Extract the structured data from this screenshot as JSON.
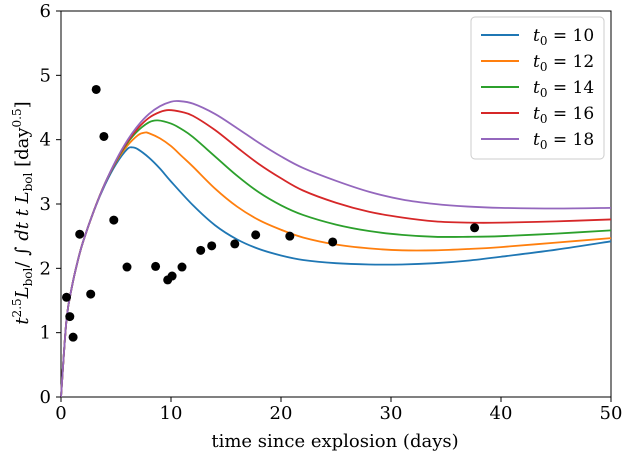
{
  "chart_data": {
    "type": "line",
    "xlabel": "time since explosion (days)",
    "ylabel": "t^2.5 L_bol / ∫ dt t L_bol [day^0.5]",
    "xlim": [
      0,
      50
    ],
    "ylim": [
      0,
      6
    ],
    "x_ticks": [
      0,
      10,
      20,
      30,
      40,
      50
    ],
    "y_ticks": [
      0,
      1,
      2,
      3,
      4,
      5,
      6
    ],
    "grid": false,
    "legend": "top-right",
    "series": [
      {
        "name": "t0 = 10",
        "label_lhs": "t0",
        "label_rhs": "= 10",
        "color": "#1f77b4",
        "x": [
          0,
          0.5,
          1,
          1.5,
          2,
          3,
          4,
          5,
          6,
          6.5,
          7,
          8,
          9,
          10,
          12,
          14,
          16,
          18,
          20,
          22,
          25,
          28,
          31,
          34,
          37,
          40,
          45,
          50
        ],
        "y": [
          0,
          1.2,
          1.72,
          2.1,
          2.41,
          2.9,
          3.3,
          3.62,
          3.85,
          3.88,
          3.85,
          3.72,
          3.55,
          3.35,
          2.98,
          2.67,
          2.45,
          2.3,
          2.2,
          2.13,
          2.08,
          2.06,
          2.06,
          2.08,
          2.12,
          2.18,
          2.29,
          2.42
        ]
      },
      {
        "name": "t0 = 12",
        "label_lhs": "t0",
        "label_rhs": "= 12",
        "color": "#ff7f0e",
        "x": [
          0,
          0.5,
          1,
          1.5,
          2,
          3,
          4,
          5,
          6,
          7,
          7.6,
          8,
          9,
          10,
          11,
          12,
          14,
          16,
          18,
          20,
          22,
          25,
          28,
          31,
          34,
          37,
          40,
          45,
          50
        ],
        "y": [
          0,
          1.2,
          1.72,
          2.1,
          2.41,
          2.9,
          3.32,
          3.65,
          3.9,
          4.07,
          4.11,
          4.1,
          4.02,
          3.9,
          3.74,
          3.58,
          3.24,
          2.96,
          2.75,
          2.6,
          2.48,
          2.37,
          2.31,
          2.28,
          2.28,
          2.3,
          2.33,
          2.4,
          2.47
        ]
      },
      {
        "name": "t0 = 14",
        "label_lhs": "t0",
        "label_rhs": "= 14",
        "color": "#2ca02c",
        "x": [
          0,
          0.5,
          1,
          1.5,
          2,
          3,
          4,
          5,
          6,
          7,
          8,
          8.8,
          10,
          11,
          12,
          14,
          16,
          18,
          20,
          22,
          25,
          28,
          31,
          34,
          37,
          40,
          45,
          50
        ],
        "y": [
          0,
          1.2,
          1.72,
          2.1,
          2.41,
          2.9,
          3.32,
          3.66,
          3.94,
          4.14,
          4.27,
          4.3,
          4.25,
          4.16,
          4.04,
          3.74,
          3.44,
          3.18,
          2.98,
          2.83,
          2.68,
          2.58,
          2.52,
          2.49,
          2.49,
          2.5,
          2.54,
          2.59
        ]
      },
      {
        "name": "t0 = 16",
        "label_lhs": "t0",
        "label_rhs": "= 16",
        "color": "#d62728",
        "x": [
          0,
          0.5,
          1,
          1.5,
          2,
          3,
          4,
          5,
          6,
          7,
          8,
          9,
          9.8,
          11,
          12,
          14,
          16,
          18,
          20,
          22,
          25,
          28,
          31,
          34,
          37,
          40,
          45,
          50
        ],
        "y": [
          0,
          1.2,
          1.72,
          2.1,
          2.41,
          2.9,
          3.32,
          3.67,
          3.96,
          4.18,
          4.34,
          4.43,
          4.46,
          4.43,
          4.37,
          4.15,
          3.88,
          3.62,
          3.4,
          3.21,
          3.02,
          2.88,
          2.79,
          2.73,
          2.71,
          2.71,
          2.73,
          2.76
        ]
      },
      {
        "name": "t0 = 18",
        "label_lhs": "t0",
        "label_rhs": "= 18",
        "color": "#9467bd",
        "x": [
          0,
          0.5,
          1,
          1.5,
          2,
          3,
          4,
          5,
          6,
          7,
          8,
          9,
          10,
          10.7,
          12,
          14,
          16,
          18,
          20,
          22,
          25,
          28,
          31,
          34,
          37,
          40,
          45,
          50
        ],
        "y": [
          0,
          1.2,
          1.72,
          2.1,
          2.41,
          2.9,
          3.32,
          3.68,
          3.98,
          4.22,
          4.4,
          4.52,
          4.59,
          4.6,
          4.56,
          4.4,
          4.18,
          3.95,
          3.74,
          3.56,
          3.36,
          3.19,
          3.07,
          3.0,
          2.96,
          2.94,
          2.93,
          2.94
        ]
      }
    ],
    "scatter": {
      "color": "#000000",
      "x": [
        0.5,
        0.8,
        1.1,
        1.7,
        2.7,
        3.2,
        3.9,
        4.8,
        6.0,
        8.6,
        9.7,
        10.1,
        11.0,
        12.7,
        13.7,
        15.8,
        17.7,
        20.8,
        24.7,
        37.6
      ],
      "y": [
        1.55,
        1.25,
        0.93,
        2.53,
        1.6,
        4.78,
        4.05,
        2.75,
        2.02,
        2.03,
        1.82,
        1.88,
        2.02,
        2.28,
        2.35,
        2.38,
        2.52,
        2.5,
        2.41,
        2.63
      ]
    }
  }
}
